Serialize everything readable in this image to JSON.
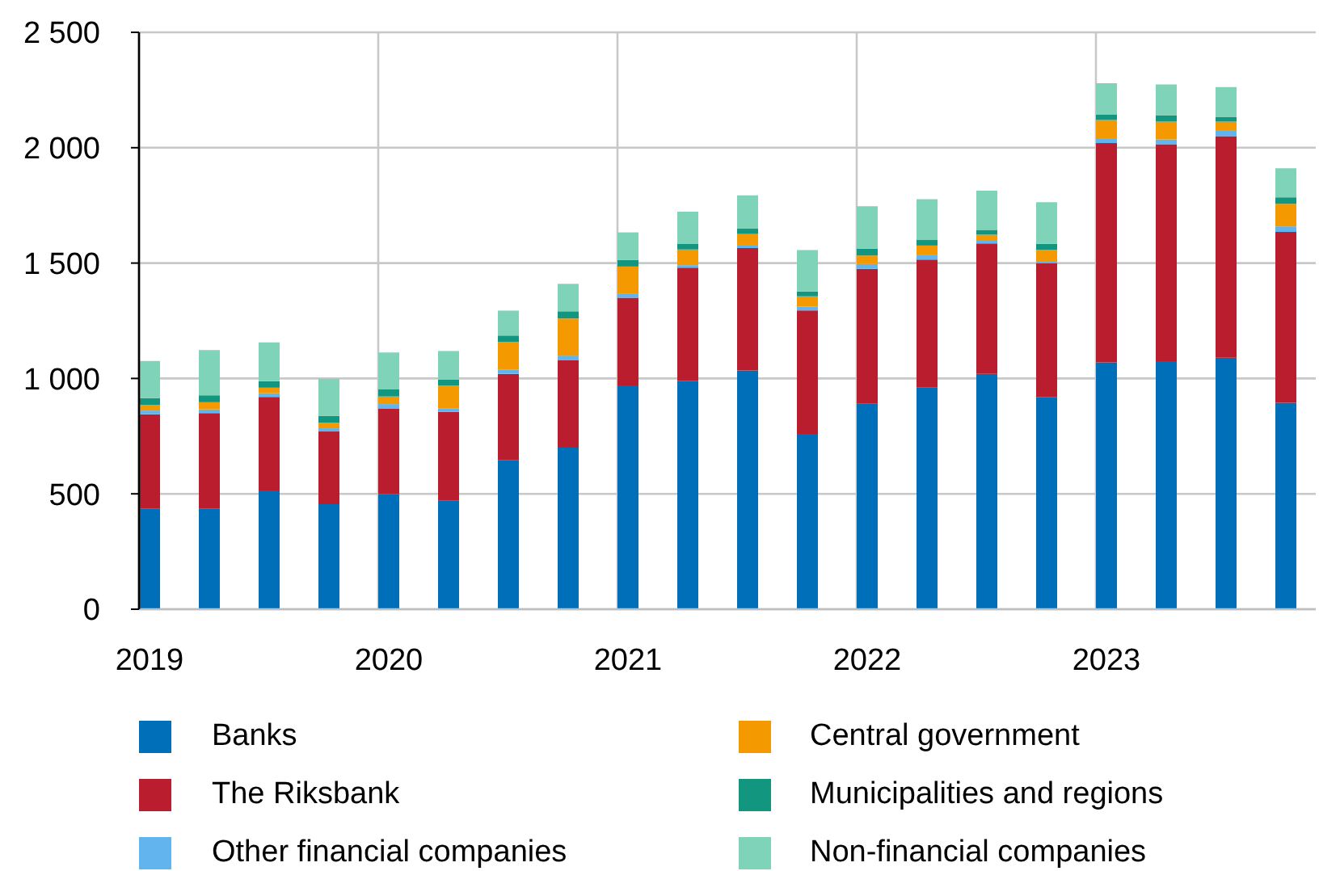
{
  "chart_data": {
    "type": "bar",
    "stacked": true,
    "categories": [
      "2019",
      null,
      null,
      null,
      "2020",
      null,
      null,
      null,
      "2021",
      null,
      null,
      null,
      "2022",
      null,
      null,
      null,
      "2023",
      null,
      null,
      null
    ],
    "series": [
      {
        "name": "Banks",
        "color": "#006fba",
        "values": [
          435,
          435,
          515,
          455,
          500,
          470,
          645,
          700,
          970,
          990,
          1035,
          760,
          890,
          960,
          1020,
          920,
          1070,
          1075,
          1090,
          895
        ]
      },
      {
        "name": "The Riksbank",
        "color": "#ba1e2e",
        "values": [
          410,
          415,
          405,
          315,
          370,
          385,
          375,
          380,
          380,
          490,
          530,
          535,
          585,
          555,
          565,
          580,
          950,
          940,
          960,
          740
        ]
      },
      {
        "name": "Other financial companies",
        "color": "#62b4ee",
        "values": [
          16,
          16,
          16,
          14,
          19,
          14,
          19,
          19,
          16,
          11,
          14,
          16,
          21,
          19,
          15,
          9,
          18,
          21,
          26,
          24
        ]
      },
      {
        "name": "Central government",
        "color": "#f49a00",
        "values": [
          24,
          31,
          24,
          24,
          33,
          100,
          119,
          161,
          119,
          68,
          47,
          45,
          37,
          42,
          23,
          49,
          82,
          77,
          37,
          98
        ]
      },
      {
        "name": "Municipalities and regions",
        "color": "#129680",
        "values": [
          30,
          30,
          28,
          30,
          32,
          26,
          28,
          31,
          28,
          24,
          23,
          21,
          30,
          24,
          21,
          26,
          23,
          28,
          21,
          28
        ]
      },
      {
        "name": "Non-financial companies",
        "color": "#7fd3b8",
        "values": [
          161,
          196,
          168,
          161,
          159,
          124,
          108,
          119,
          120,
          140,
          145,
          179,
          183,
          177,
          170,
          180,
          136,
          133,
          129,
          126
        ]
      }
    ],
    "ylim": [
      0,
      2500
    ],
    "yticks": [
      0,
      500,
      {
        "value": 1000,
        "label": "1 000"
      },
      {
        "value": 1500,
        "label": "1 500"
      },
      {
        "value": 2000,
        "label": "2 000"
      },
      {
        "value": 2500,
        "label": "2 500"
      }
    ],
    "grid": true,
    "legend": "bottom"
  }
}
